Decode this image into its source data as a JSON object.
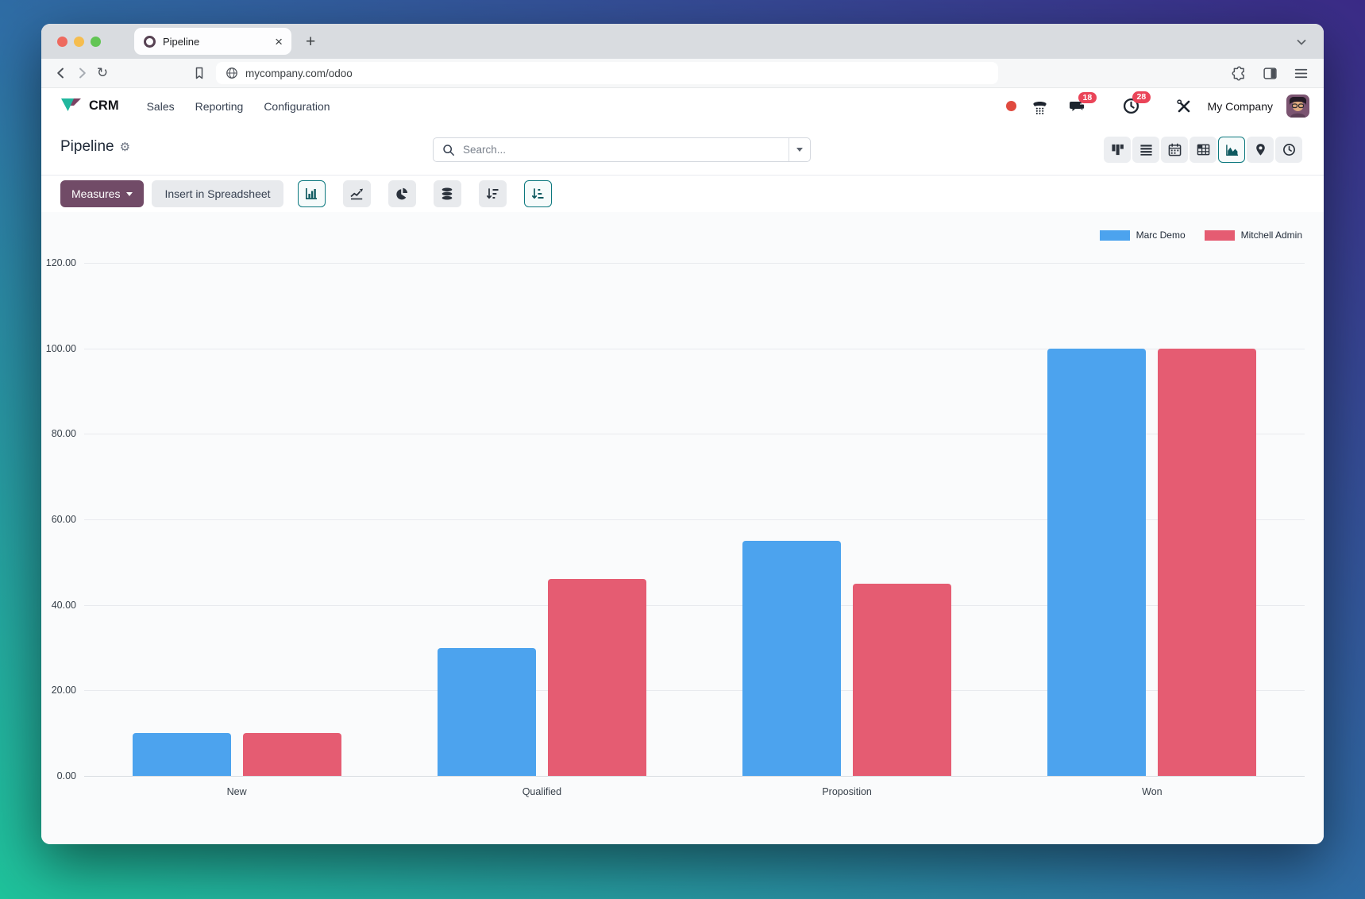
{
  "browser": {
    "tab_title": "Pipeline",
    "url": "mycompany.com/odoo"
  },
  "icons": {
    "tab_close": "×",
    "new_tab": "+",
    "reload": "↻",
    "gear": "⚙"
  },
  "nav": {
    "app_name": "CRM",
    "menus": [
      "Sales",
      "Reporting",
      "Configuration"
    ],
    "chat_badge": "18",
    "activity_badge": "28",
    "company_name": "My Company"
  },
  "control_panel": {
    "page_title": "Pipeline",
    "search_placeholder": "Search..."
  },
  "toolbar": {
    "measures_label": "Measures",
    "insert_spreadsheet_label": "Insert in Spreadsheet"
  },
  "chart_data": {
    "type": "bar",
    "categories": [
      "New",
      "Qualified",
      "Proposition",
      "Won"
    ],
    "series": [
      {
        "name": "Marc Demo",
        "color": "#4CA3EE",
        "values": [
          10,
          30,
          55,
          100
        ]
      },
      {
        "name": "Mitchell Admin",
        "color": "#E55C72",
        "values": [
          10,
          46,
          45,
          100
        ]
      }
    ],
    "ylim": [
      0,
      120
    ],
    "ytick_step": 20,
    "yticks": [
      "120.00",
      "100.00",
      "80.00",
      "60.00",
      "40.00",
      "20.00",
      "0.00"
    ],
    "grid": true,
    "legend_position": "top-right"
  },
  "colors": {
    "brand_purple": "#714B67",
    "accent_teal": "#0b787e",
    "badge_red": "#ea4458",
    "series_blue": "#4CA3EE",
    "series_red": "#E55C72"
  }
}
